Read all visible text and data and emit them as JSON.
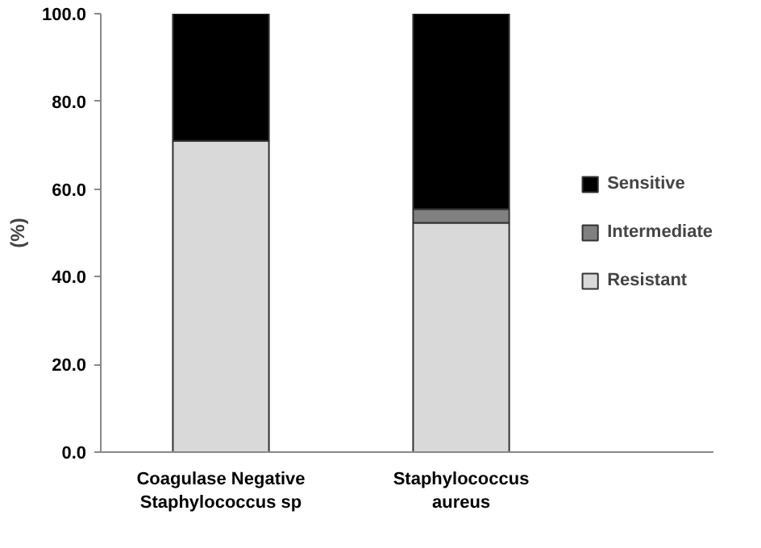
{
  "chart_data": {
    "type": "bar",
    "stacked": true,
    "ylabel": "(%)",
    "categories": [
      "Coagulase Negative Staphylococcus sp",
      "Staphylococcus aureus"
    ],
    "series": [
      {
        "name": "Resistant",
        "color": "#d9d9d9",
        "values": [
          71.0,
          52.3
        ]
      },
      {
        "name": "Intermediate",
        "color": "#808080",
        "values": [
          0,
          3.1
        ]
      },
      {
        "name": "Sensitive",
        "color": "#000000",
        "values": [
          29.0,
          44.6
        ]
      }
    ],
    "ylim": [
      0,
      100
    ],
    "yticks": [
      {
        "value": 0,
        "label": "0.0"
      },
      {
        "value": 20,
        "label": "20.0"
      },
      {
        "value": 40,
        "label": "40.0"
      },
      {
        "value": 60,
        "label": "60.0"
      },
      {
        "value": 80,
        "label": "80.0"
      },
      {
        "value": 100,
        "label": "100.0"
      }
    ],
    "grid": false,
    "legend": "right"
  }
}
